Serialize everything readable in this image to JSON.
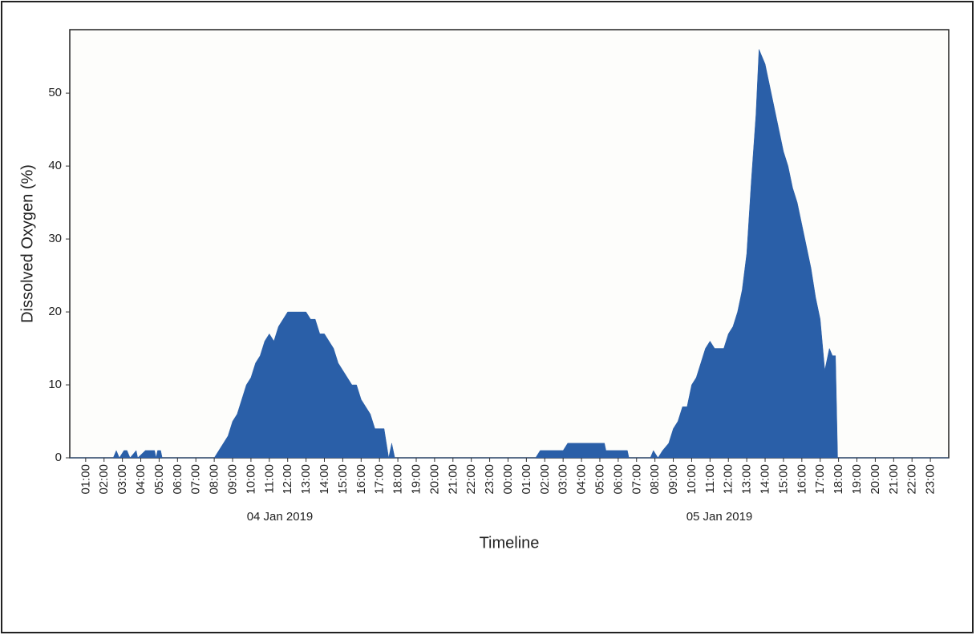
{
  "chart_data": {
    "type": "area",
    "x_title": "Timeline",
    "y_title": "Dissolved Oxygen (%)",
    "color": "#2a5fa8",
    "x_groups": [
      "04 Jan 2019",
      "05 Jan 2019"
    ],
    "xlim": [
      "2019-01-04 00:08",
      "2019-01-06 00:00"
    ],
    "ylim": [
      0,
      58.7
    ],
    "yticks": [
      0,
      10,
      20,
      30,
      40,
      50
    ],
    "xticks": [
      {
        "value": "2019-01-04 01:00",
        "label": "01:00"
      },
      {
        "value": "2019-01-04 02:00",
        "label": "02:00"
      },
      {
        "value": "2019-01-04 03:00",
        "label": "03:00"
      },
      {
        "value": "2019-01-04 04:00",
        "label": "04:00"
      },
      {
        "value": "2019-01-04 05:00",
        "label": "05:00"
      },
      {
        "value": "2019-01-04 06:00",
        "label": "06:00"
      },
      {
        "value": "2019-01-04 07:00",
        "label": "07:00"
      },
      {
        "value": "2019-01-04 08:00",
        "label": "08:00"
      },
      {
        "value": "2019-01-04 09:00",
        "label": "09:00"
      },
      {
        "value": "2019-01-04 10:00",
        "label": "10:00"
      },
      {
        "value": "2019-01-04 11:00",
        "label": "11:00"
      },
      {
        "value": "2019-01-04 12:00",
        "label": "12:00"
      },
      {
        "value": "2019-01-04 13:00",
        "label": "13:00"
      },
      {
        "value": "2019-01-04 14:00",
        "label": "14:00"
      },
      {
        "value": "2019-01-04 15:00",
        "label": "15:00"
      },
      {
        "value": "2019-01-04 16:00",
        "label": "16:00"
      },
      {
        "value": "2019-01-04 17:00",
        "label": "17:00"
      },
      {
        "value": "2019-01-04 18:00",
        "label": "18:00"
      },
      {
        "value": "2019-01-04 19:00",
        "label": "19:00"
      },
      {
        "value": "2019-01-04 20:00",
        "label": "20:00"
      },
      {
        "value": "2019-01-04 21:00",
        "label": "21:00"
      },
      {
        "value": "2019-01-04 22:00",
        "label": "22:00"
      },
      {
        "value": "2019-01-04 23:00",
        "label": "23:00"
      },
      {
        "value": "2019-01-05 00:00",
        "label": "00:00"
      },
      {
        "value": "2019-01-05 01:00",
        "label": "01:00"
      },
      {
        "value": "2019-01-05 02:00",
        "label": "02:00"
      },
      {
        "value": "2019-01-05 03:00",
        "label": "03:00"
      },
      {
        "value": "2019-01-05 04:00",
        "label": "04:00"
      },
      {
        "value": "2019-01-05 05:00",
        "label": "05:00"
      },
      {
        "value": "2019-01-05 06:00",
        "label": "06:00"
      },
      {
        "value": "2019-01-05 07:00",
        "label": "07:00"
      },
      {
        "value": "2019-01-05 08:00",
        "label": "08:00"
      },
      {
        "value": "2019-01-05 09:00",
        "label": "09:00"
      },
      {
        "value": "2019-01-05 10:00",
        "label": "10:00"
      },
      {
        "value": "2019-01-05 11:00",
        "label": "11:00"
      },
      {
        "value": "2019-01-05 12:00",
        "label": "12:00"
      },
      {
        "value": "2019-01-05 13:00",
        "label": "13:00"
      },
      {
        "value": "2019-01-05 14:00",
        "label": "14:00"
      },
      {
        "value": "2019-01-05 15:00",
        "label": "15:00"
      },
      {
        "value": "2019-01-05 16:00",
        "label": "16:00"
      },
      {
        "value": "2019-01-05 17:00",
        "label": "17:00"
      },
      {
        "value": "2019-01-05 18:00",
        "label": "18:00"
      },
      {
        "value": "2019-01-05 19:00",
        "label": "19:00"
      },
      {
        "value": "2019-01-05 20:00",
        "label": "20:00"
      },
      {
        "value": "2019-01-05 21:00",
        "label": "21:00"
      },
      {
        "value": "2019-01-05 22:00",
        "label": "22:00"
      },
      {
        "value": "2019-01-05 23:00",
        "label": "23:00"
      }
    ],
    "x": [
      "2019-01-04 00:08",
      "2019-01-04 02:30",
      "2019-01-04 02:40",
      "2019-01-04 02:50",
      "2019-01-04 03:05",
      "2019-01-04 03:15",
      "2019-01-04 03:25",
      "2019-01-04 03:45",
      "2019-01-04 03:50",
      "2019-01-04 04:15",
      "2019-01-04 04:45",
      "2019-01-04 04:50",
      "2019-01-04 04:55",
      "2019-01-04 05:05",
      "2019-01-04 05:10",
      "2019-01-04 08:00",
      "2019-01-04 08:15",
      "2019-01-04 08:30",
      "2019-01-04 08:45",
      "2019-01-04 09:00",
      "2019-01-04 09:15",
      "2019-01-04 09:30",
      "2019-01-04 09:45",
      "2019-01-04 10:00",
      "2019-01-04 10:15",
      "2019-01-04 10:30",
      "2019-01-04 10:45",
      "2019-01-04 11:00",
      "2019-01-04 11:15",
      "2019-01-04 11:30",
      "2019-01-04 11:45",
      "2019-01-04 12:00",
      "2019-01-04 12:30",
      "2019-01-04 13:00",
      "2019-01-04 13:15",
      "2019-01-04 13:30",
      "2019-01-04 13:45",
      "2019-01-04 14:00",
      "2019-01-04 14:15",
      "2019-01-04 14:30",
      "2019-01-04 14:45",
      "2019-01-04 15:00",
      "2019-01-04 15:15",
      "2019-01-04 15:30",
      "2019-01-04 15:45",
      "2019-01-04 16:00",
      "2019-01-04 16:15",
      "2019-01-04 16:30",
      "2019-01-04 16:45",
      "2019-01-04 17:00",
      "2019-01-04 17:15",
      "2019-01-04 17:30",
      "2019-01-04 17:40",
      "2019-01-04 17:50",
      "2019-01-05 01:30",
      "2019-01-05 01:45",
      "2019-01-05 03:00",
      "2019-01-05 03:15",
      "2019-01-05 05:15",
      "2019-01-05 05:20",
      "2019-01-05 06:30",
      "2019-01-05 06:35",
      "2019-01-05 07:45",
      "2019-01-05 07:55",
      "2019-01-05 08:10",
      "2019-01-05 08:25",
      "2019-01-05 08:45",
      "2019-01-05 09:00",
      "2019-01-05 09:15",
      "2019-01-05 09:30",
      "2019-01-05 09:45",
      "2019-01-05 10:00",
      "2019-01-05 10:15",
      "2019-01-05 10:30",
      "2019-01-05 10:45",
      "2019-01-05 11:00",
      "2019-01-05 11:15",
      "2019-01-05 11:45",
      "2019-01-05 12:00",
      "2019-01-05 12:15",
      "2019-01-05 12:30",
      "2019-01-05 12:45",
      "2019-01-05 13:00",
      "2019-01-05 13:15",
      "2019-01-05 13:30",
      "2019-01-05 13:40",
      "2019-01-05 14:00",
      "2019-01-05 14:15",
      "2019-01-05 14:30",
      "2019-01-05 14:45",
      "2019-01-05 15:00",
      "2019-01-05 15:15",
      "2019-01-05 15:30",
      "2019-01-05 15:45",
      "2019-01-05 16:00",
      "2019-01-05 16:15",
      "2019-01-05 16:30",
      "2019-01-05 16:45",
      "2019-01-05 17:00",
      "2019-01-05 17:15",
      "2019-01-05 17:30",
      "2019-01-05 17:40",
      "2019-01-05 17:50",
      "2019-01-05 17:57",
      "2019-01-05 18:00",
      "2019-01-05 23:59"
    ],
    "values": [
      0,
      0,
      1,
      0,
      1,
      1,
      0,
      1,
      0,
      1,
      1,
      0,
      1,
      1,
      0,
      0,
      1,
      2,
      3,
      5,
      6,
      8,
      10,
      11,
      13,
      14,
      16,
      17,
      16,
      18,
      19,
      20,
      20,
      20,
      19,
      19,
      17,
      17,
      16,
      15,
      13,
      12,
      11,
      10,
      10,
      8,
      7,
      6,
      4,
      4,
      4,
      0,
      2,
      0,
      0,
      1,
      1,
      2,
      2,
      1,
      1,
      0,
      0,
      1,
      0,
      1,
      2,
      4,
      5,
      7,
      7,
      10,
      11,
      13,
      15,
      16,
      15,
      15,
      17,
      18,
      20,
      23,
      28,
      38,
      47,
      56,
      54,
      51,
      48,
      45,
      42,
      40,
      37,
      35,
      32,
      29,
      26,
      22,
      19,
      12,
      15,
      14,
      14,
      0,
      0,
      0
    ]
  }
}
